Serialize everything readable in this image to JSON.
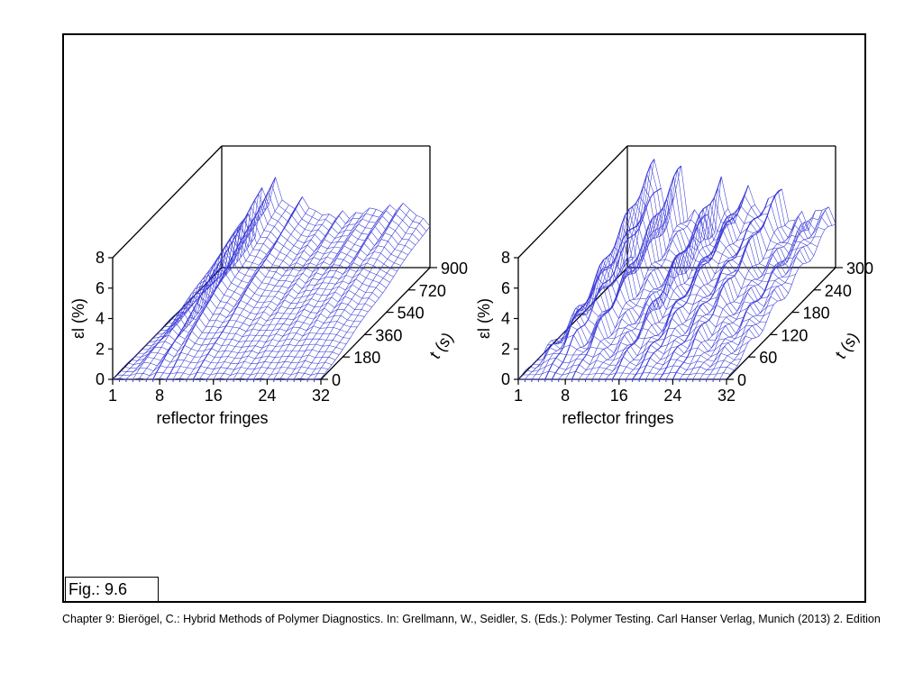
{
  "figure_label": "Fig.: 9.6",
  "caption": "Chapter 9: Bierögel, C.: Hybrid Methods of Polymer Diagnostics. In: Grellmann, W., Seidler, S. (Eds.): Polymer Testing. Carl Hanser Verlag, Munich (2013) 2. Edition",
  "colors": {
    "mesh": "#3a3ad8",
    "axes": "#000000"
  },
  "chart_data": [
    {
      "type": "surface",
      "xlabel": "reflector fringes",
      "ylabel": "t (s)",
      "zlabel": "εl (%)",
      "x_ticks": [
        "1",
        "8",
        "16",
        "24",
        "32"
      ],
      "y_ticks": [
        "0",
        "180",
        "360",
        "540",
        "720",
        "900"
      ],
      "z_ticks": [
        "0",
        "2",
        "4",
        "6",
        "8"
      ],
      "xlim": [
        1,
        32
      ],
      "ylim": [
        0,
        900
      ],
      "zlim": [
        0,
        8
      ],
      "fringes": [
        1,
        2,
        3,
        4,
        5,
        6,
        7,
        8,
        9,
        10,
        11,
        12,
        13,
        14,
        15,
        16,
        17,
        18,
        19,
        20,
        21,
        22,
        23,
        24,
        25,
        26,
        27,
        28,
        29,
        30,
        31,
        32
      ],
      "final_strain": [
        0,
        0,
        0.6,
        3.0,
        3.6,
        2.0,
        5.2,
        4.2,
        5.9,
        4.4,
        4.2,
        3.8,
        4.6,
        4.0,
        3.7,
        3.4,
        3.6,
        3.2,
        3.7,
        3.3,
        3.6,
        3.5,
        4.0,
        3.8,
        3.6,
        4.2,
        3.7,
        4.2,
        3.9,
        3.4,
        3.2,
        2.8
      ]
    },
    {
      "type": "surface",
      "xlabel": "reflector fringes",
      "ylabel": "t (s)",
      "zlabel": "εl (%)",
      "x_ticks": [
        "1",
        "8",
        "16",
        "24",
        "32"
      ],
      "y_ticks": [
        "0",
        "60",
        "120",
        "180",
        "240",
        "300"
      ],
      "z_ticks": [
        "0",
        "2",
        "4",
        "6",
        "8"
      ],
      "xlim": [
        1,
        32
      ],
      "ylim": [
        0,
        300
      ],
      "zlim": [
        0,
        8
      ],
      "fringes": [
        1,
        2,
        3,
        4,
        5,
        6,
        7,
        8,
        9,
        10,
        11,
        12,
        13,
        14,
        15,
        16,
        17,
        18,
        19,
        20,
        21,
        22,
        23,
        24,
        25,
        26,
        27,
        28,
        29,
        30,
        31,
        32
      ],
      "final_strain": [
        0,
        0.8,
        3.4,
        4.2,
        6.9,
        5.5,
        3.0,
        4.4,
        6.6,
        3.5,
        3.8,
        2.8,
        3.6,
        2.6,
        5.8,
        3.6,
        3.2,
        4.6,
        5.1,
        4.0,
        3.8,
        4.6,
        4.4,
        5.2,
        3.4,
        3.0,
        3.4,
        2.7,
        4.0,
        3.5,
        3.8,
        3.2
      ]
    }
  ]
}
